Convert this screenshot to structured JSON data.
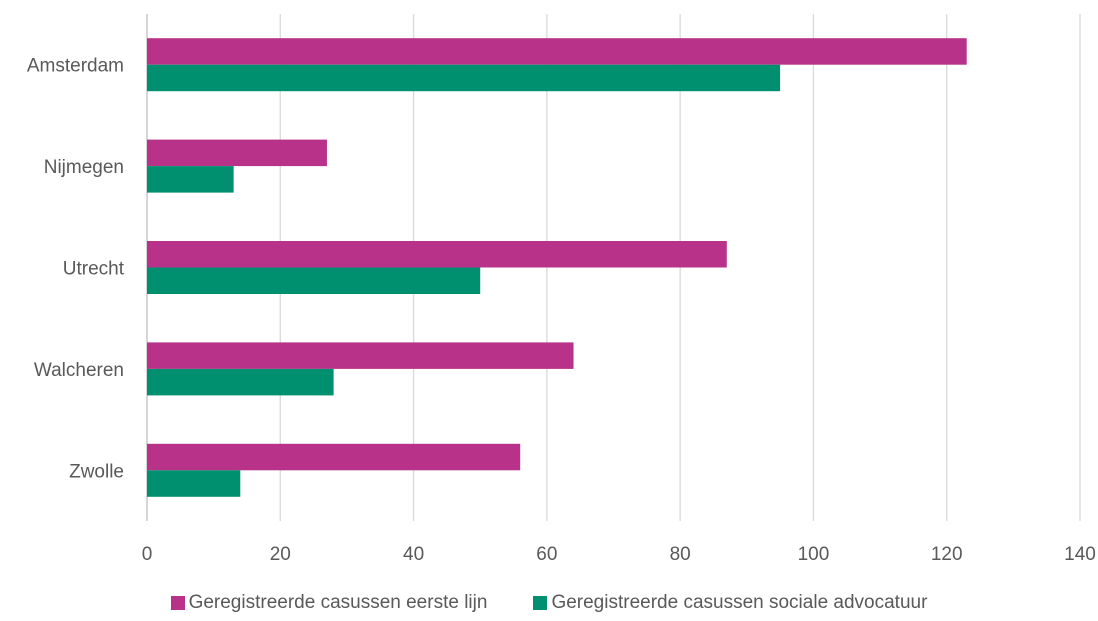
{
  "chart_data": {
    "type": "bar",
    "orientation": "horizontal",
    "categories": [
      "Amsterdam",
      "Nijmegen",
      "Utrecht",
      "Walcheren",
      "Zwolle"
    ],
    "series": [
      {
        "name": "Geregistreerde casussen eerste lijn",
        "color": "#B8328A",
        "values": [
          123,
          27,
          87,
          64,
          56
        ]
      },
      {
        "name": "Geregistreerde casussen sociale advocatuur",
        "color": "#00906F",
        "values": [
          95,
          13,
          50,
          28,
          14
        ]
      }
    ],
    "xlim": [
      0,
      140
    ],
    "xticks": [
      0,
      20,
      40,
      60,
      80,
      100,
      120,
      140
    ],
    "title": "",
    "xlabel": "",
    "ylabel": "",
    "grid": "vertical",
    "legend_position": "bottom"
  }
}
